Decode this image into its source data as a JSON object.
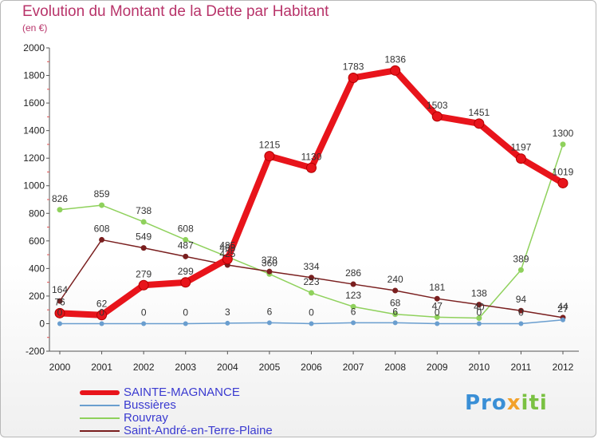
{
  "title": "Evolution du Montant de la Dette par Habitant",
  "subtitle": "(en €)",
  "logo": {
    "part1": "Pro",
    "part2": "x",
    "part3": "iti"
  },
  "chart_data": {
    "type": "line",
    "x": [
      "2000",
      "2001",
      "2002",
      "2003",
      "2004",
      "2005",
      "2006",
      "2007",
      "2008",
      "2009",
      "2010",
      "2011",
      "2012"
    ],
    "ylim": [
      -200,
      2000
    ],
    "yticks": [
      -200,
      0,
      200,
      400,
      600,
      800,
      1000,
      1200,
      1400,
      1600,
      1800,
      2000
    ],
    "grid": false,
    "legend_position": "bottom-left",
    "series": [
      {
        "name": "SAINTE-MAGNANCE",
        "color": "#e8141b",
        "values": [
          76,
          62,
          279,
          299,
          468,
          1215,
          1130,
          1783,
          1836,
          1503,
          1451,
          1197,
          1019
        ],
        "labels": [
          "76",
          "62",
          "279",
          "299",
          "468",
          "1215",
          "1130",
          "1783",
          "1836",
          "1503",
          "1451",
          "1197",
          "1019"
        ]
      },
      {
        "name": "Bussières",
        "color": "#6a9ecf",
        "values": [
          0,
          0,
          0,
          0,
          3,
          6,
          0,
          6,
          6,
          0,
          0,
          0,
          27
        ],
        "labels": [
          "0",
          "0",
          "0",
          "0",
          "3",
          "6",
          "0",
          "6",
          "6",
          "0",
          "0",
          "0",
          "27"
        ]
      },
      {
        "name": "Rouvray",
        "color": "#8fd15c",
        "values": [
          826,
          859,
          738,
          608,
          485,
          360,
          223,
          123,
          68,
          47,
          40,
          389,
          1300
        ],
        "labels": [
          "826",
          "859",
          "738",
          "608",
          "485",
          "360",
          "223",
          "123",
          "68",
          "47",
          "40",
          "389",
          "1300"
        ]
      },
      {
        "name": "Saint-André-en-Terre-Plaine",
        "color": "#7a1f1f",
        "values": [
          164,
          608,
          549,
          487,
          425,
          378,
          334,
          286,
          240,
          181,
          138,
          94,
          44
        ],
        "labels": [
          "164",
          "608",
          "549",
          "487",
          "425",
          "378",
          "334",
          "286",
          "240",
          "181",
          "138",
          "94",
          "44"
        ]
      }
    ]
  }
}
